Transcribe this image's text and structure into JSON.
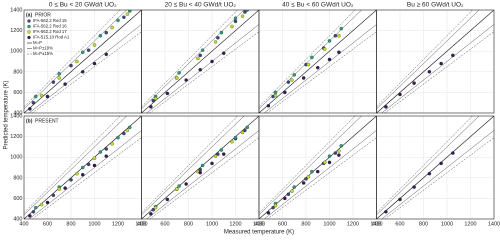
{
  "axis_labels": {
    "x": "Measured temperature (K)",
    "y": "Predicted temperature (K)"
  },
  "legend": [
    {
      "name": "IFA-562.2 Rod 15",
      "color": "#3a4a7a"
    },
    {
      "name": "IFA-562.2 Rod 16",
      "color": "#2e9e7a"
    },
    {
      "name": "IFA-562.2 Rod 17",
      "color": "#c5de2a"
    },
    {
      "name": "IFA-515.10 Rod A1",
      "color": "#3b1a5a"
    }
  ],
  "reference_lines": [
    {
      "name": "M=P",
      "offsets": [
        0
      ]
    },
    {
      "name": "M=P±10%",
      "offsets": [
        -10,
        10
      ]
    },
    {
      "name": "M=P±15%",
      "offsets": [
        -15,
        15
      ]
    }
  ],
  "chart_data": [
    {
      "type": "scatter",
      "title": "0 ≤ Bu < 20 GWd/t UO₂",
      "label": "(a)",
      "row_title": "PRIOR",
      "xlim": [
        400,
        1400
      ],
      "ylim": [
        400,
        1400
      ],
      "xticks": [
        400,
        600,
        800,
        1000,
        1200,
        1400
      ],
      "yticks": [
        400,
        600,
        800,
        1000,
        1200,
        1400
      ],
      "grid": true,
      "series": [
        {
          "x": [
            480,
            650,
            800,
            950,
            1100,
            1250
          ],
          "y": [
            500,
            700,
            860,
            1010,
            1180,
            1330
          ]
        },
        {
          "x": [
            500,
            700,
            900,
            1050,
            1200,
            1300
          ],
          "y": [
            560,
            780,
            990,
            1150,
            1300,
            1390
          ]
        },
        {
          "x": [
            550,
            700,
            850,
            1000,
            1150,
            1280
          ],
          "y": [
            570,
            740,
            900,
            1060,
            1230,
            1360
          ]
        },
        {
          "x": [
            450,
            600,
            750,
            900,
            1000,
            1100
          ],
          "y": [
            440,
            560,
            680,
            800,
            880,
            970
          ]
        }
      ]
    },
    {
      "type": "scatter",
      "title": "20 ≤ Bu < 40 GWd/t UO₂",
      "xlim": [
        400,
        1400
      ],
      "ylim": [
        400,
        1400
      ],
      "xticks": [
        400,
        600,
        800,
        1000,
        1200,
        1400
      ],
      "yticks": [
        400,
        600,
        800,
        1000,
        1200,
        1400
      ],
      "grid": true,
      "series": [
        {
          "x": [
            500,
            700,
            900,
            1050,
            1200,
            1280
          ],
          "y": [
            520,
            740,
            960,
            1130,
            1290,
            1380
          ]
        },
        {
          "x": [
            520,
            720,
            920,
            1080,
            1200,
            1300
          ],
          "y": [
            560,
            790,
            1010,
            1180,
            1320,
            1400
          ]
        },
        {
          "x": [
            520,
            700,
            880,
            1030,
            1170,
            1260
          ],
          "y": [
            540,
            740,
            930,
            1090,
            1240,
            1340
          ]
        },
        {
          "x": [
            480,
            620,
            780,
            900,
            1000,
            1100
          ],
          "y": [
            460,
            590,
            720,
            820,
            900,
            980
          ]
        }
      ]
    },
    {
      "type": "scatter",
      "title": "40 ≤ Bu < 60 GWd/t UO₂",
      "xlim": [
        400,
        1400
      ],
      "ylim": [
        400,
        1400
      ],
      "xticks": [
        400,
        600,
        800,
        1000,
        1200,
        1400
      ],
      "yticks": [
        400,
        600,
        800,
        1000,
        1200,
        1400
      ],
      "grid": true,
      "series": [
        {
          "x": [
            520,
            650,
            800,
            950,
            1050
          ],
          "y": [
            560,
            700,
            870,
            1030,
            1150
          ]
        },
        {
          "x": [
            540,
            700,
            850,
            1000,
            1100
          ],
          "y": [
            600,
            770,
            940,
            1100,
            1220
          ]
        },
        {
          "x": [
            540,
            680,
            820,
            960,
            1080
          ],
          "y": [
            570,
            720,
            870,
            1020,
            1150
          ]
        },
        {
          "x": [
            480,
            620,
            780,
            900,
            1000,
            1080
          ],
          "y": [
            470,
            600,
            740,
            840,
            920,
            990
          ]
        }
      ]
    },
    {
      "type": "scatter",
      "title": "Bu ≥ 60 GWd/t UO₂",
      "xlim": [
        400,
        1400
      ],
      "ylim": [
        400,
        1400
      ],
      "xticks": [
        400,
        600,
        800,
        1000,
        1200,
        1400
      ],
      "yticks": [
        400,
        600,
        800,
        1000,
        1200,
        1400
      ],
      "grid": true,
      "series": [
        {
          "x": [],
          "y": []
        },
        {
          "x": [],
          "y": []
        },
        {
          "x": [],
          "y": []
        },
        {
          "x": [
            480,
            600,
            720,
            850,
            950,
            1050
          ],
          "y": [
            460,
            580,
            690,
            800,
            880,
            960
          ]
        }
      ]
    },
    {
      "type": "scatter",
      "label": "(b)",
      "row_title": "PRESENT",
      "xlim": [
        400,
        1400
      ],
      "ylim": [
        400,
        1400
      ],
      "xticks": [
        400,
        600,
        800,
        1000,
        1200,
        1400
      ],
      "yticks": [
        400,
        600,
        800,
        1000,
        1200,
        1400
      ],
      "grid": true,
      "series": [
        {
          "x": [
            480,
            650,
            800,
            950,
            1100,
            1250
          ],
          "y": [
            470,
            630,
            780,
            930,
            1080,
            1230
          ]
        },
        {
          "x": [
            500,
            700,
            900,
            1050,
            1200,
            1300
          ],
          "y": [
            510,
            710,
            900,
            1050,
            1190,
            1290
          ]
        },
        {
          "x": [
            550,
            700,
            850,
            1000,
            1150,
            1280
          ],
          "y": [
            540,
            690,
            840,
            990,
            1130,
            1260
          ]
        },
        {
          "x": [
            450,
            600,
            750,
            900,
            1000,
            1100
          ],
          "y": [
            430,
            560,
            700,
            830,
            920,
            1010
          ]
        }
      ]
    },
    {
      "type": "scatter",
      "xlim": [
        400,
        1400
      ],
      "ylim": [
        400,
        1400
      ],
      "xticks": [
        400,
        600,
        800,
        1000,
        1200,
        1400
      ],
      "yticks": [
        400,
        600,
        800,
        1000,
        1200,
        1400
      ],
      "grid": true,
      "series": [
        {
          "x": [
            500,
            700,
            900,
            1050,
            1200,
            1280
          ],
          "y": [
            490,
            690,
            880,
            1030,
            1180,
            1260
          ]
        },
        {
          "x": [
            520,
            720,
            920,
            1080,
            1200,
            1300
          ],
          "y": [
            520,
            720,
            920,
            1070,
            1190,
            1290
          ]
        },
        {
          "x": [
            520,
            700,
            880,
            1030,
            1170,
            1260
          ],
          "y": [
            510,
            690,
            860,
            1010,
            1150,
            1240
          ]
        },
        {
          "x": [
            480,
            620,
            780,
            900,
            1000,
            1100
          ],
          "y": [
            450,
            590,
            740,
            850,
            940,
            1030
          ]
        }
      ]
    },
    {
      "type": "scatter",
      "xlim": [
        400,
        1400
      ],
      "ylim": [
        400,
        1400
      ],
      "xticks": [
        400,
        600,
        800,
        1000,
        1200,
        1400
      ],
      "yticks": [
        400,
        600,
        800,
        1000,
        1200,
        1400
      ],
      "grid": true,
      "series": [
        {
          "x": [
            520,
            650,
            800,
            950,
            1050
          ],
          "y": [
            510,
            640,
            790,
            940,
            1040
          ]
        },
        {
          "x": [
            540,
            700,
            850,
            1000,
            1100
          ],
          "y": [
            550,
            710,
            860,
            1010,
            1110
          ]
        },
        {
          "x": [
            540,
            680,
            820,
            960,
            1080
          ],
          "y": [
            530,
            670,
            810,
            950,
            1060
          ]
        },
        {
          "x": [
            480,
            620,
            780,
            900,
            1000,
            1080
          ],
          "y": [
            460,
            600,
            750,
            860,
            950,
            1020
          ]
        }
      ]
    },
    {
      "type": "scatter",
      "xlim": [
        400,
        1400
      ],
      "ylim": [
        400,
        1400
      ],
      "xticks": [
        400,
        600,
        800,
        1000,
        1200,
        1400
      ],
      "yticks": [
        400,
        600,
        800,
        1000,
        1200,
        1400
      ],
      "grid": true,
      "series": [
        {
          "x": [],
          "y": []
        },
        {
          "x": [],
          "y": []
        },
        {
          "x": [],
          "y": []
        },
        {
          "x": [
            480,
            600,
            720,
            850,
            950,
            1050
          ],
          "y": [
            470,
            590,
            710,
            840,
            940,
            1040
          ]
        }
      ]
    }
  ]
}
